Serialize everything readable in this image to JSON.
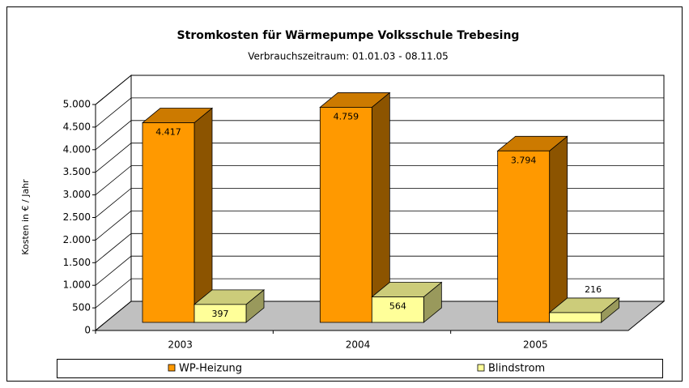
{
  "chart_data": {
    "type": "bar3d",
    "title": "Stromkosten für Wärmepumpe Volksschule Trebesing",
    "subtitle": "Verbrauchszeitraum: 01.01.03 - 08.11.05",
    "y_label": "Kosten in € / Jahr",
    "categories": [
      "2003",
      "2004",
      "2005"
    ],
    "series": [
      {
        "name": "WP-Heizung",
        "color": "#ff9900",
        "values": [
          4417,
          4759,
          3794
        ],
        "value_labels": [
          "4.417",
          "4.759",
          "3.794"
        ]
      },
      {
        "name": "Blindstrom",
        "color": "#ffff99",
        "values": [
          397,
          564,
          216
        ],
        "value_labels": [
          "397",
          "564",
          "216"
        ]
      }
    ],
    "ylim": [
      0,
      5000
    ],
    "yticks": [
      {
        "value": 0,
        "label": "0"
      },
      {
        "value": 500,
        "label": "500"
      },
      {
        "value": 1000,
        "label": "1.000"
      },
      {
        "value": 1500,
        "label": "1.500"
      },
      {
        "value": 2000,
        "label": "2.000"
      },
      {
        "value": 2500,
        "label": "2.500"
      },
      {
        "value": 3000,
        "label": "3.000"
      },
      {
        "value": 3500,
        "label": "3.500"
      },
      {
        "value": 4000,
        "label": "4.000"
      },
      {
        "value": 4500,
        "label": "4.500"
      },
      {
        "value": 5000,
        "label": "5.000"
      }
    ],
    "grid": true,
    "legend": "bottom"
  }
}
